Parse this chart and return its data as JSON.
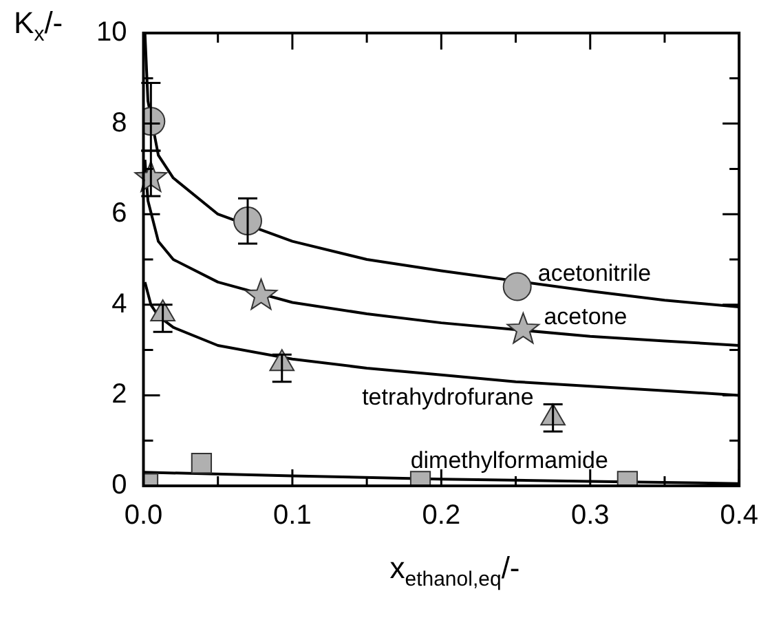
{
  "chart_data": {
    "type": "scatter",
    "xlabel": "x$_{ethanol,eq}$/-",
    "ylabel": "K$_{x}$/-",
    "xlim": [
      0,
      0.4
    ],
    "ylim": [
      0,
      10
    ],
    "xticks": [
      {
        "value": 0,
        "label": "0.0"
      },
      {
        "value": 0.05,
        "label": null
      },
      0.1,
      {
        "value": 0.15,
        "label": null
      },
      0.2,
      {
        "value": 0.25,
        "label": null
      },
      0.3,
      {
        "value": 0.35,
        "label": null
      },
      0.4
    ],
    "yticks": [
      0,
      {
        "value": 1,
        "label": null
      },
      2,
      {
        "value": 3,
        "label": null
      },
      4,
      {
        "value": 5,
        "label": null
      },
      6,
      {
        "value": 7,
        "label": null
      },
      8,
      {
        "value": 9,
        "label": null
      },
      10
    ],
    "grid": false,
    "legend": false,
    "series": [
      {
        "name": "acetonitrile",
        "color": "#b0b0b0",
        "marker": "circle",
        "x": [
          0.005,
          0.07,
          0.251
        ],
        "values": [
          8.05,
          5.85,
          4.4
        ],
        "errors": [
          [
            7.4,
            8.9
          ],
          [
            5.35,
            6.35
          ],
          null
        ]
      },
      {
        "type": "line",
        "color": "#000000",
        "marker": "none",
        "x": [
          0.001,
          0.003,
          0.01,
          0.02,
          0.05,
          0.1,
          0.15,
          0.2,
          0.3,
          0.35,
          0.4
        ],
        "values": [
          10,
          8.5,
          7.3,
          6.8,
          6.0,
          5.4,
          5.0,
          4.75,
          4.3,
          4.1,
          3.95
        ]
      },
      {
        "name": "acetone",
        "color": "#b0b0b0",
        "marker": "star",
        "x": [
          0.005,
          0.079,
          0.255
        ],
        "values": [
          6.8,
          4.2,
          3.45
        ],
        "errors": [
          [
            6.4,
            7.4
          ],
          null,
          null
        ]
      },
      {
        "type": "line",
        "color": "#000000",
        "marker": "none",
        "x": [
          0.001,
          0.003,
          0.01,
          0.02,
          0.05,
          0.1,
          0.15,
          0.2,
          0.25,
          0.3,
          0.35,
          0.4
        ],
        "values": [
          7.2,
          6.3,
          5.4,
          5.0,
          4.5,
          4.05,
          3.8,
          3.6,
          3.45,
          3.3,
          3.2,
          3.1
        ]
      },
      {
        "name": "tetrahydrofurane",
        "color": "#b0b0b0",
        "marker": "triangle",
        "x": [
          0.013,
          0.093,
          0.275
        ],
        "values": [
          3.8,
          2.7,
          1.5
        ],
        "errors": [
          [
            3.4,
            4.0
          ],
          [
            2.3,
            2.9
          ],
          [
            1.2,
            1.8
          ]
        ]
      },
      {
        "type": "line",
        "color": "#000000",
        "marker": "none",
        "x": [
          0.001,
          0.005,
          0.01,
          0.02,
          0.05,
          0.1,
          0.15,
          0.2,
          0.25,
          0.3,
          0.35,
          0.4
        ],
        "values": [
          4.5,
          4.0,
          3.75,
          3.5,
          3.1,
          2.8,
          2.6,
          2.45,
          2.3,
          2.2,
          2.1,
          2.0
        ]
      },
      {
        "name": "dimethylformamide",
        "color": "#b0b0b0",
        "marker": "square",
        "x": [
          0.003,
          0.039,
          0.186,
          0.325
        ],
        "values": [
          0.05,
          0.5,
          0.1,
          0.1
        ]
      },
      {
        "type": "line",
        "color": "#000000",
        "marker": "none",
        "x": [
          0.0,
          0.1,
          0.2,
          0.3,
          0.4
        ],
        "values": [
          0.3,
          0.22,
          0.15,
          0.1,
          0.05
        ]
      }
    ]
  }
}
